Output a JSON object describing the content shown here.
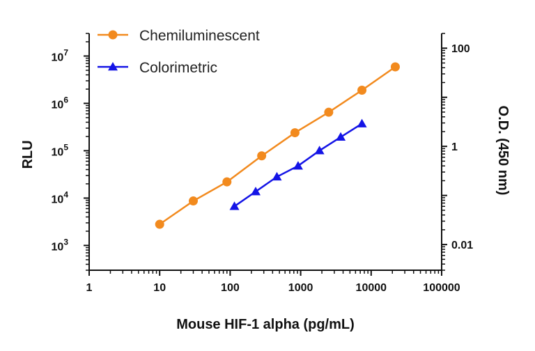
{
  "chart_data": {
    "type": "line",
    "xlabel": "Mouse HIF-1 alpha (pg/mL)",
    "ylabel": "RLU",
    "y2label": "O.D. (450 nm)",
    "xscale": "log",
    "yscale": "log",
    "y2scale": "log",
    "xlim": [
      1,
      100000
    ],
    "ylim": [
      300,
      30000000
    ],
    "y2lim": [
      0.003,
      200
    ],
    "x_ticks": [
      "1",
      "10",
      "100",
      "1000",
      "10000",
      "100000"
    ],
    "y_ticks": [
      {
        "base": "10",
        "exp": "3"
      },
      {
        "base": "10",
        "exp": "4"
      },
      {
        "base": "10",
        "exp": "5"
      },
      {
        "base": "10",
        "exp": "6"
      },
      {
        "base": "10",
        "exp": "7"
      }
    ],
    "y2_ticks": [
      "0.01",
      "1",
      "100"
    ],
    "legend_position": "top-left",
    "grid": false,
    "series": [
      {
        "name": "Chemiluminescent",
        "axis": "left",
        "color": "#F28A1E",
        "marker": "circle",
        "x": [
          10,
          30,
          90,
          280,
          830,
          2500,
          7400,
          22000
        ],
        "y": [
          2800,
          8700,
          22000,
          78000,
          240000,
          650000,
          1900000,
          5900000
        ]
      },
      {
        "name": "Colorimetric",
        "axis": "right",
        "color": "#1414E6",
        "marker": "triangle",
        "x": [
          115,
          230,
          460,
          920,
          1850,
          3700,
          7400
        ],
        "y": [
          0.06,
          0.12,
          0.24,
          0.4,
          0.82,
          1.55,
          2.9
        ]
      }
    ]
  }
}
